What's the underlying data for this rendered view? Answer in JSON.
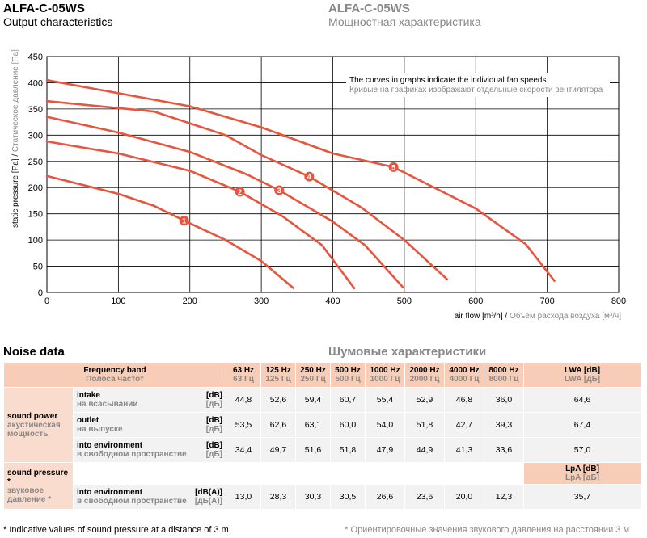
{
  "header": {
    "model_en": "ALFA-C-05WS",
    "subtitle_en": "Output characteristics",
    "model_ru": "ALFA-C-05WS",
    "subtitle_ru": "Мощностная характеристика"
  },
  "chart_data": {
    "type": "line",
    "ylabel_en": "static pressure [Pa] / ",
    "ylabel_ru": "Статическое давление [Па]",
    "xlabel_en": "air flow [m³/h] / ",
    "xlabel_ru": "Объем расхода воздуха [м³/ч]",
    "note_en": "The curves in graphs indicate the individual fan speeds",
    "note_ru": "Кривые на графиках изображают отдельные скорости вентилятора",
    "xlim": [
      0,
      800
    ],
    "ylim": [
      0,
      450
    ],
    "xticks": [
      "0",
      "100",
      "200",
      "300",
      "400",
      "500",
      "600",
      "700",
      "800"
    ],
    "yticks": [
      "0",
      "50",
      "100",
      "150",
      "200",
      "250",
      "300",
      "350",
      "400",
      "450"
    ],
    "grid": true,
    "color": "#e8553e",
    "series": [
      {
        "name": "1",
        "label_x": 192,
        "points": [
          [
            0,
            222
          ],
          [
            100,
            188
          ],
          [
            150,
            165
          ],
          [
            192,
            137
          ],
          [
            250,
            100
          ],
          [
            300,
            60
          ],
          [
            345,
            8
          ]
        ]
      },
      {
        "name": "2",
        "label_x": 270,
        "points": [
          [
            0,
            288
          ],
          [
            100,
            265
          ],
          [
            200,
            232
          ],
          [
            270,
            192
          ],
          [
            330,
            145
          ],
          [
            385,
            90
          ],
          [
            430,
            8
          ]
        ]
      },
      {
        "name": "3",
        "label_x": 325,
        "points": [
          [
            0,
            335
          ],
          [
            100,
            305
          ],
          [
            200,
            268
          ],
          [
            280,
            225
          ],
          [
            325,
            195
          ],
          [
            400,
            135
          ],
          [
            445,
            90
          ],
          [
            498,
            10
          ]
        ]
      },
      {
        "name": "4",
        "label_x": 367,
        "points": [
          [
            0,
            365
          ],
          [
            150,
            345
          ],
          [
            250,
            300
          ],
          [
            300,
            262
          ],
          [
            367,
            221
          ],
          [
            440,
            162
          ],
          [
            500,
            100
          ],
          [
            560,
            25
          ]
        ]
      },
      {
        "name": "5",
        "label_x": 485,
        "points": [
          [
            0,
            405
          ],
          [
            200,
            355
          ],
          [
            300,
            315
          ],
          [
            400,
            265
          ],
          [
            485,
            239
          ],
          [
            600,
            160
          ],
          [
            670,
            92
          ],
          [
            710,
            22
          ]
        ]
      }
    ]
  },
  "noise": {
    "title_en": "Noise data",
    "title_ru": "Шумовые характеристики",
    "freq_label_en": "Frequency band",
    "freq_label_ru": "Полоса частот",
    "bands": [
      {
        "en": "63 Hz",
        "ru": "63 Гц"
      },
      {
        "en": "125 Hz",
        "ru": "125 Гц"
      },
      {
        "en": "250 Hz",
        "ru": "250 Гц"
      },
      {
        "en": "500 Hz",
        "ru": "500 Гц"
      },
      {
        "en": "1000 Hz",
        "ru": "1000 Гц"
      },
      {
        "en": "2000 Hz",
        "ru": "2000 Гц"
      },
      {
        "en": "4000 Hz",
        "ru": "4000 Гц"
      },
      {
        "en": "8000 Hz",
        "ru": "8000 Гц"
      }
    ],
    "lwa_en": "LWA [dB]",
    "lwa_ru": "LWA [дБ]",
    "lpa_en": "LpA [dB]",
    "lpa_ru": "LpA [дБ]",
    "power_group_en": "sound power",
    "power_group_ru": "акустическая мощность",
    "pressure_group_en": "sound pressure *",
    "pressure_group_ru": "звуковое давление *",
    "rows": [
      {
        "name_en": "intake",
        "name_ru": "на всасывании",
        "unit_en": "[dB]",
        "unit_ru": "[дБ]",
        "values": [
          "44,8",
          "52,6",
          "59,4",
          "60,7",
          "55,4",
          "52,9",
          "46,8",
          "36,0"
        ],
        "total": "64,6"
      },
      {
        "name_en": "outlet",
        "name_ru": "на выпуске",
        "unit_en": "[dB]",
        "unit_ru": "[дБ]",
        "values": [
          "53,5",
          "62,6",
          "63,1",
          "60,0",
          "54,0",
          "51,8",
          "42,7",
          "39,3"
        ],
        "total": "67,4"
      },
      {
        "name_en": "into environment",
        "name_ru": "в свободном пространстве",
        "unit_en": "[dB]",
        "unit_ru": "[дБ]",
        "values": [
          "34,4",
          "49,7",
          "51,6",
          "51,8",
          "47,9",
          "44,9",
          "41,3",
          "33,6"
        ],
        "total": "57,0"
      },
      {
        "name_en": "into environment",
        "name_ru": "в свободном пространстве",
        "unit_en": "[dB(A)]",
        "unit_ru": "[дБ(A)]",
        "values": [
          "13,0",
          "28,3",
          "30,3",
          "30,5",
          "26,6",
          "23,6",
          "20,0",
          "12,3"
        ],
        "total": "35,7"
      }
    ],
    "footnote_en": "* Indicative values of sound pressure at a distance of 3 m",
    "footnote_ru": "* Ориентировочные значения звукового давления на расстоянии 3 м"
  }
}
